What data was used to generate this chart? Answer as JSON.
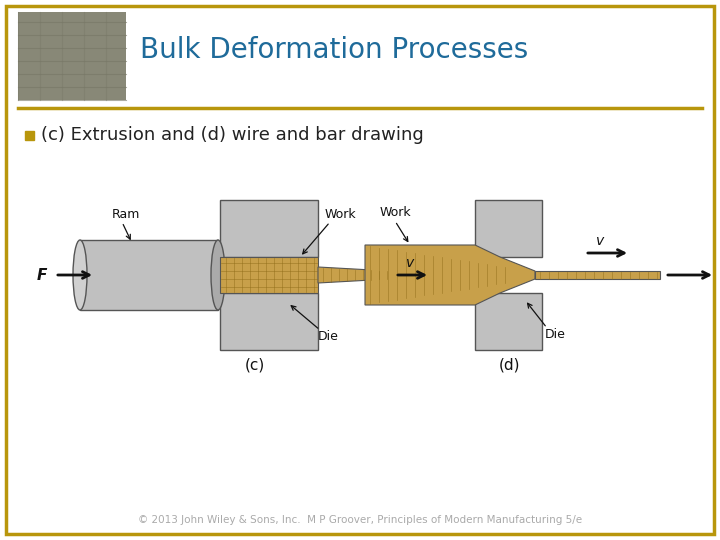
{
  "title": "Bulk Deformation Processes",
  "title_color": "#1F6B9A",
  "subtitle": "(c) Extrusion and (d) wire and bar drawing",
  "subtitle_color": "#222222",
  "border_color": "#B8960C",
  "background_color": "#FFFFFF",
  "footer": "© 2013 John Wiley & Sons, Inc.  M P Groover, Principles of Modern Manufacturing 5/e",
  "footer_color": "#AAAAAA",
  "die_color": "#C0C0C0",
  "work_color": "#C8A04A",
  "ram_color": "#C0C0C0",
  "bullet_color": "#B8960C",
  "label_c": "(c)",
  "label_d": "(d)",
  "arrow_color": "#111111",
  "figw": 7.2,
  "figh": 5.4,
  "dpi": 100
}
